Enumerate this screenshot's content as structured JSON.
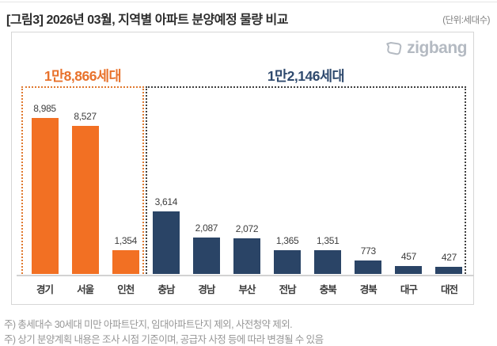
{
  "page": {
    "title": "[그림3] 2026년 03월, 지역별 아파트 분양예정 물량 비교",
    "unit_label": "(단위:세대수)",
    "footnote1": "주) 총세대수 30세대 미만 아파트단지, 임대아파트단지 제외, 사전청약 제외.",
    "footnote2": "주) 상기 분양계획 내용은 조사 시점 기준이며, 공급자 사정 등에 따라 변경될 수 있음"
  },
  "logo": {
    "text": "zigbang",
    "color": "#b4bac2"
  },
  "chart_data": {
    "type": "bar",
    "title": "[그림3] 2026년 03월, 지역별 아파트 분양예정 물량 비교",
    "unit": "세대수",
    "categories": [
      "경기",
      "서울",
      "인천",
      "충남",
      "경남",
      "부산",
      "전남",
      "충북",
      "경북",
      "대구",
      "대전"
    ],
    "values": [
      8985,
      8527,
      1354,
      3614,
      2087,
      2072,
      1365,
      1351,
      773,
      457,
      427
    ],
    "value_labels": [
      "8,985",
      "8,527",
      "1,354",
      "3,614",
      "2,087",
      "2,072",
      "1,365",
      "1,351",
      "773",
      "457",
      "427"
    ],
    "groups": [
      {
        "label": "1만8,866세대",
        "total": 18866,
        "bar_count": 3,
        "bar_color": "#F27023",
        "label_color": "#E8722C",
        "box_border_color": "#E0792F"
      },
      {
        "label": "1만2,146세대",
        "total": 12146,
        "bar_count": 8,
        "bar_color": "#2A4466",
        "label_color": "#2F4A6E",
        "box_border_color": "#3f3f3f"
      }
    ],
    "ylim": [
      0,
      9500
    ],
    "grid": false,
    "legend": "none",
    "xlabel": "",
    "ylabel": ""
  }
}
